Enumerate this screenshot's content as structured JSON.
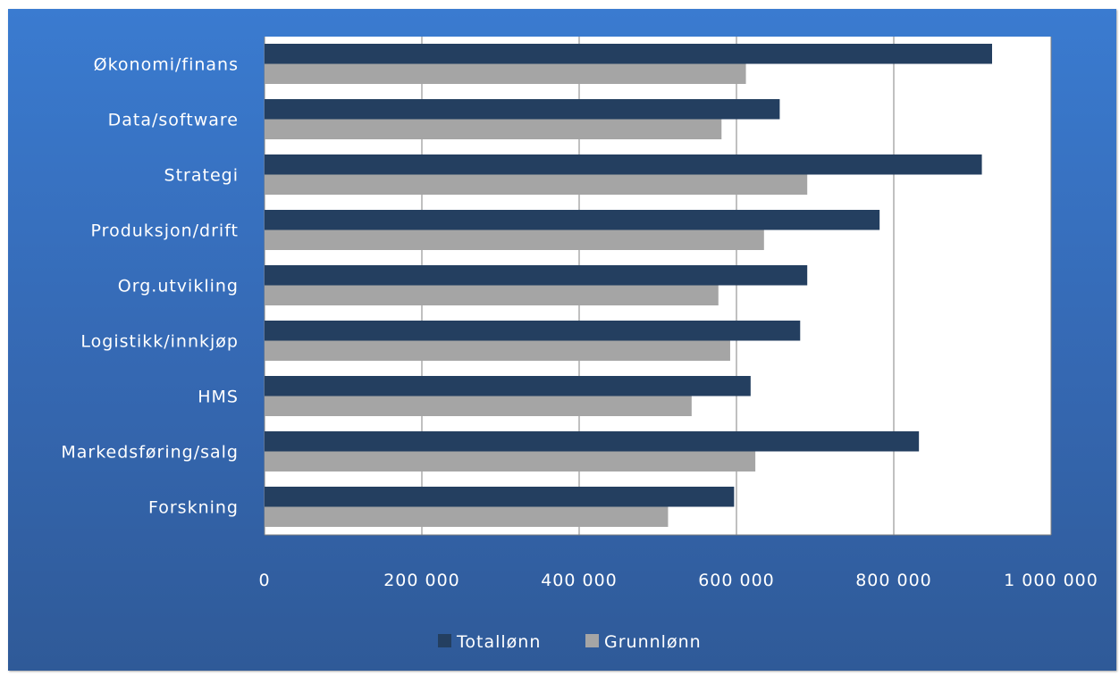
{
  "colors": {
    "background_top": "#3a7bd0",
    "background_bottom": "#2f5a98",
    "plot_area": "#ffffff",
    "gridline": "#808080",
    "text": "#ffffff"
  },
  "chart_data": {
    "type": "bar",
    "orientation": "horizontal",
    "title": "",
    "xlabel": "",
    "ylabel": "",
    "categories": [
      "Økonomi/finans",
      "Data/software",
      "Strategi",
      "Produksjon/drift",
      "Org.utvikling",
      "Logistikk/innkjøp",
      "HMS",
      "Markedsføring/salg",
      "Forskning"
    ],
    "series": [
      {
        "name": "Totallønn",
        "color": "#243f60",
        "values": [
          925000,
          655000,
          912000,
          782000,
          690000,
          681000,
          618000,
          832000,
          597000
        ]
      },
      {
        "name": "Grunnlønn",
        "color": "#a5a5a5",
        "values": [
          612000,
          581000,
          690000,
          635000,
          577000,
          592000,
          543000,
          624000,
          513000
        ]
      }
    ],
    "xlim": [
      0,
      1000000
    ],
    "ticks": [
      0,
      200000,
      400000,
      600000,
      800000,
      1000000
    ],
    "tick_labels": [
      "0",
      "200 000",
      "400 000",
      "600 000",
      "800 000",
      "1 000 000"
    ],
    "grid": "vertical major gridlines",
    "legend_position": "bottom"
  }
}
